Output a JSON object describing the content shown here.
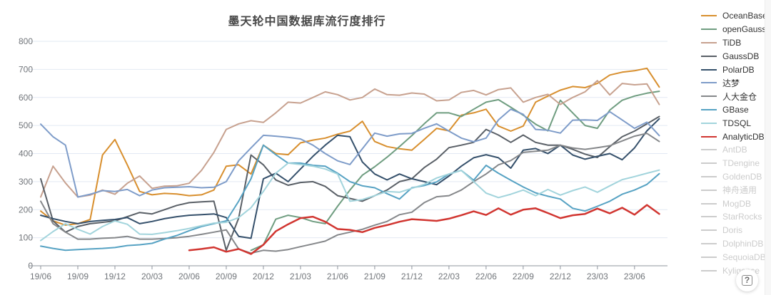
{
  "title": "墨天轮中国数据库流行度排行",
  "help_button": {
    "label": "?"
  },
  "chart_data": {
    "type": "line",
    "title": "墨天轮中国数据库流行度排行",
    "xlabel": "",
    "ylabel": "",
    "ylim": [
      0,
      800
    ],
    "y_ticks": [
      0,
      100,
      200,
      300,
      400,
      500,
      600,
      700,
      800
    ],
    "grid": true,
    "legend_position": "right",
    "x_tick_labels": [
      "19/06",
      "19/09",
      "19/12",
      "20/03",
      "20/06",
      "20/09",
      "20/12",
      "21/03",
      "21/06",
      "21/09",
      "21/12",
      "22/03",
      "22/06",
      "22/09",
      "22/12",
      "23/03",
      "23/06"
    ],
    "x_months_total": 51,
    "x_tick_every_months": 3,
    "series": [
      {
        "name": "OceanBase",
        "color": "#d88f2e",
        "width": 2,
        "values": [
          195,
          160,
          145,
          150,
          165,
          395,
          450,
          360,
          265,
          253,
          258,
          256,
          250,
          253,
          270,
          355,
          360,
          327,
          430,
          400,
          396,
          438,
          448,
          455,
          469,
          480,
          515,
          443,
          425,
          417,
          412,
          450,
          490,
          481,
          537,
          545,
          558,
          498,
          480,
          498,
          583,
          605,
          626,
          639,
          635,
          650,
          680,
          690,
          695,
          704,
          637
        ]
      },
      {
        "name": "openGauss",
        "color": "#6f9d80",
        "width": 2,
        "values": [
          null,
          null,
          null,
          null,
          null,
          null,
          null,
          null,
          null,
          null,
          null,
          null,
          null,
          null,
          null,
          null,
          null,
          55,
          75,
          166,
          180,
          172,
          158,
          150,
          212,
          270,
          323,
          353,
          387,
          425,
          464,
          506,
          545,
          545,
          532,
          558,
          583,
          592,
          565,
          537,
          505,
          481,
          590,
          545,
          500,
          490,
          555,
          590,
          605,
          615,
          622
        ]
      },
      {
        "name": "TiDB",
        "color": "#c7a18f",
        "width": 2,
        "values": [
          245,
          355,
          295,
          245,
          252,
          270,
          255,
          294,
          320,
          276,
          284,
          285,
          294,
          340,
          404,
          486,
          506,
          517,
          511,
          545,
          583,
          580,
          600,
          620,
          610,
          591,
          600,
          630,
          610,
          608,
          616,
          612,
          588,
          591,
          618,
          625,
          609,
          628,
          634,
          583,
          600,
          611,
          575,
          600,
          620,
          660,
          609,
          650,
          645,
          648,
          575
        ]
      },
      {
        "name": "GaussDB",
        "color": "#595f66",
        "width": 2,
        "values": [
          310,
          160,
          120,
          140,
          150,
          155,
          160,
          175,
          190,
          185,
          200,
          215,
          225,
          228,
          230,
          55,
          170,
          395,
          360,
          306,
          287,
          297,
          300,
          283,
          250,
          240,
          230,
          250,
          270,
          300,
          310,
          350,
          380,
          421,
          430,
          440,
          486,
          466,
          440,
          466,
          440,
          430,
          430,
          415,
          398,
          386,
          425,
          460,
          480,
          506,
          532
        ]
      },
      {
        "name": "PolarDB",
        "color": "#35506b",
        "width": 2,
        "values": [
          180,
          168,
          158,
          150,
          158,
          162,
          165,
          172,
          150,
          158,
          168,
          175,
          180,
          182,
          185,
          172,
          105,
          98,
          310,
          330,
          300,
          345,
          390,
          430,
          465,
          460,
          370,
          327,
          306,
          327,
          310,
          300,
          289,
          320,
          355,
          385,
          396,
          385,
          348,
          412,
          418,
          400,
          430,
          395,
          380,
          390,
          400,
          378,
          420,
          481,
          524
        ]
      },
      {
        "name": "达梦",
        "color": "#7e9cc9",
        "width": 2,
        "values": [
          505,
          460,
          430,
          245,
          255,
          268,
          265,
          272,
          250,
          270,
          278,
          280,
          282,
          278,
          280,
          300,
          374,
          420,
          465,
          462,
          458,
          452,
          430,
          400,
          374,
          361,
          417,
          473,
          462,
          470,
          472,
          490,
          506,
          480,
          455,
          442,
          455,
          520,
          558,
          540,
          486,
          483,
          473,
          519,
          520,
          518,
          549,
          520,
          490,
          512,
          464
        ]
      },
      {
        "name": "人大金仓",
        "color": "#85878a",
        "width": 2,
        "values": [
          230,
          150,
          120,
          95,
          95,
          98,
          100,
          105,
          95,
          95,
          97,
          100,
          105,
          112,
          120,
          128,
          60,
          45,
          55,
          52,
          58,
          68,
          78,
          88,
          110,
          120,
          130,
          145,
          158,
          182,
          191,
          225,
          246,
          250,
          270,
          300,
          327,
          360,
          375,
          404,
          408,
          412,
          430,
          420,
          415,
          421,
          428,
          445,
          462,
          472,
          443
        ]
      },
      {
        "name": "GBase",
        "color": "#56a2c3",
        "width": 2,
        "values": [
          70,
          62,
          55,
          58,
          60,
          62,
          65,
          72,
          75,
          80,
          95,
          108,
          125,
          140,
          150,
          160,
          230,
          310,
          430,
          396,
          366,
          366,
          358,
          355,
          330,
          300,
          285,
          278,
          257,
          238,
          278,
          286,
          299,
          327,
          340,
          305,
          358,
          330,
          305,
          281,
          260,
          248,
          238,
          205,
          195,
          212,
          230,
          255,
          270,
          290,
          328
        ]
      },
      {
        "name": "TDSQL",
        "color": "#a2d4dc",
        "width": 2,
        "values": [
          90,
          122,
          150,
          130,
          113,
          140,
          160,
          148,
          113,
          112,
          118,
          125,
          133,
          143,
          152,
          155,
          172,
          207,
          265,
          330,
          366,
          361,
          355,
          345,
          327,
          230,
          236,
          250,
          265,
          262,
          276,
          290,
          313,
          327,
          340,
          300,
          259,
          243,
          255,
          270,
          250,
          272,
          252,
          268,
          281,
          262,
          285,
          307,
          318,
          330,
          341
        ]
      },
      {
        "name": "AnalyticDB",
        "color": "#d13530",
        "width": 2.5,
        "values": [
          null,
          null,
          null,
          null,
          null,
          null,
          null,
          null,
          null,
          null,
          null,
          null,
          55,
          60,
          66,
          50,
          60,
          42,
          75,
          123,
          148,
          170,
          175,
          157,
          131,
          128,
          120,
          135,
          145,
          157,
          166,
          163,
          160,
          168,
          180,
          194,
          181,
          205,
          182,
          200,
          205,
          188,
          170,
          180,
          185,
          204,
          187,
          207,
          182,
          217,
          185
        ]
      }
    ],
    "disabled_series": [
      "AntDB",
      "TDengine",
      "GoldenDB",
      "神舟通用",
      "MogDB",
      "StarRocks",
      "Doris",
      "DolphinDB",
      "SequoiaDB",
      "Kyligence"
    ],
    "inactive_color": "#cccccc",
    "grid_color": "#e2e9f3",
    "axis_color": "#8f959e",
    "tick_text_color": "#71757a"
  }
}
